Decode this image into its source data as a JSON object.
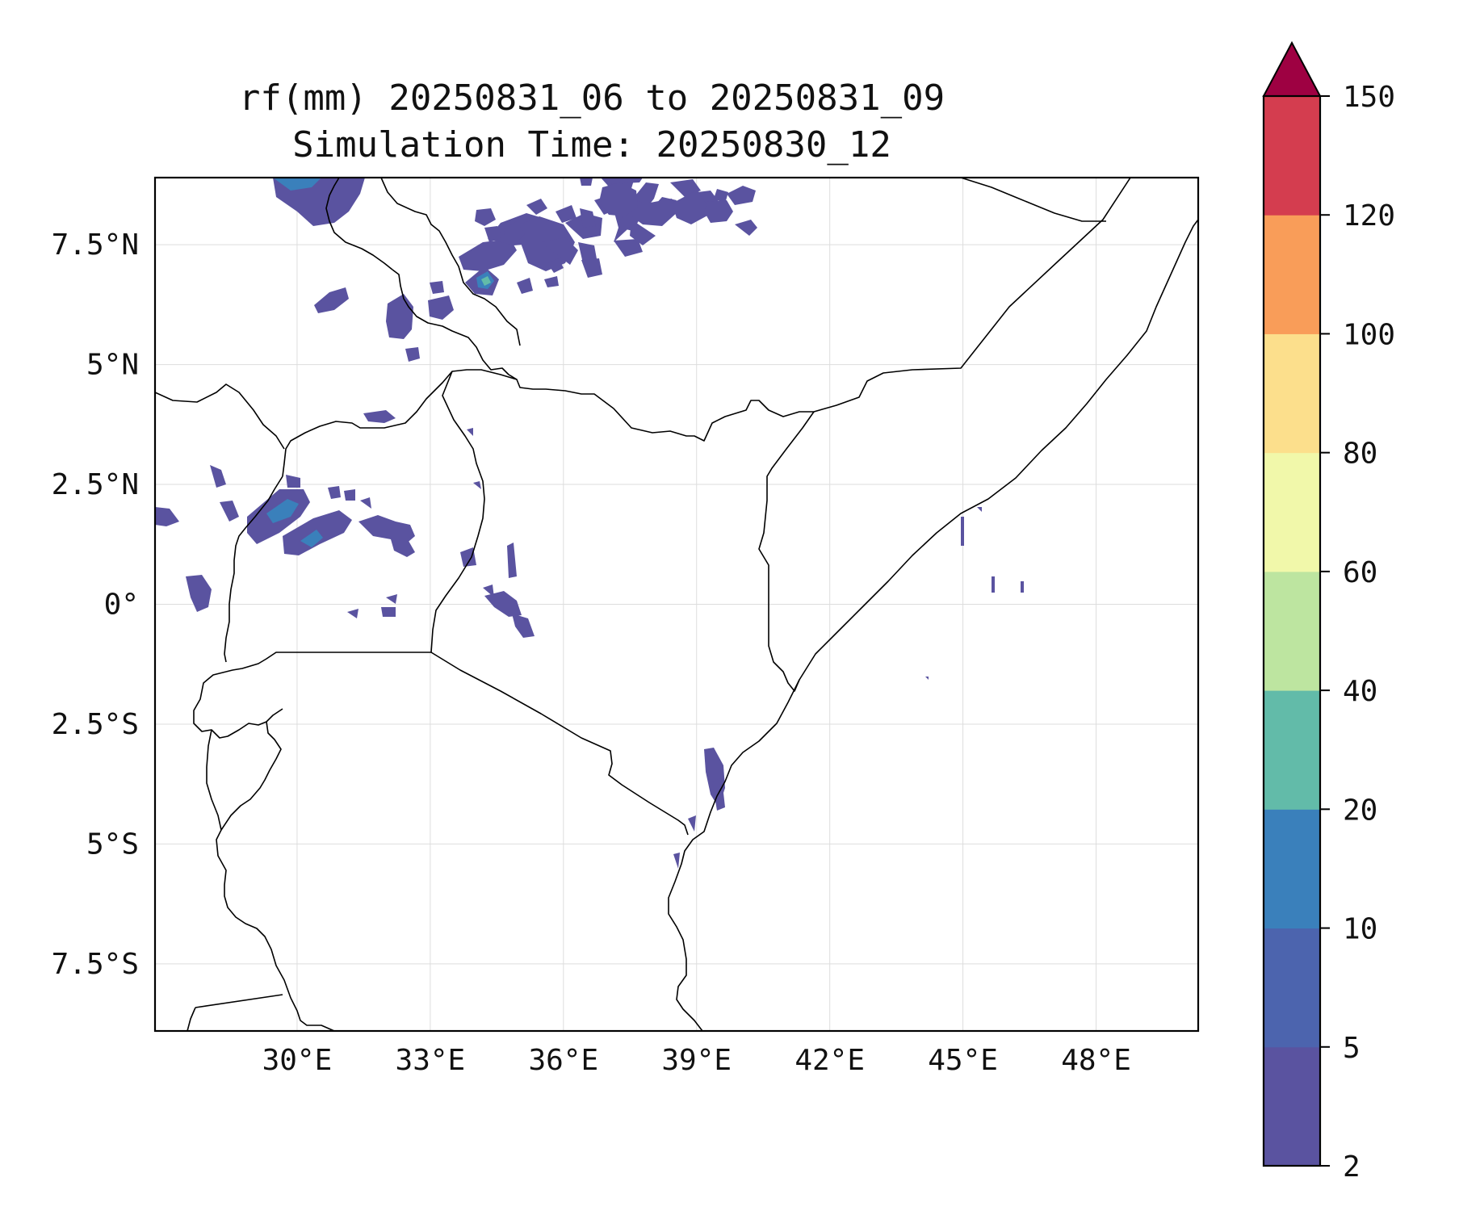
{
  "title": {
    "line1": "rf(mm) 20250831_06 to 20250831_09",
    "line2": "Simulation Time: 20250830_12"
  },
  "map": {
    "lon_range": [
      26.8,
      50.3
    ],
    "lat_range": [
      -8.9,
      8.9
    ],
    "projection": "plate-carree",
    "gridlines": true,
    "coastline_color": "#000000",
    "background_color": "#ffffff"
  },
  "axes": {
    "x_ticks": [
      {
        "value": 30,
        "label": "30°E"
      },
      {
        "value": 33,
        "label": "33°E"
      },
      {
        "value": 36,
        "label": "36°E"
      },
      {
        "value": 39,
        "label": "39°E"
      },
      {
        "value": 42,
        "label": "42°E"
      },
      {
        "value": 45,
        "label": "45°E"
      },
      {
        "value": 48,
        "label": "48°E"
      }
    ],
    "y_ticks": [
      {
        "value": 7.5,
        "label": "7.5°N"
      },
      {
        "value": 5,
        "label": "5°N"
      },
      {
        "value": 2.5,
        "label": "2.5°N"
      },
      {
        "value": 0,
        "label": "0°"
      },
      {
        "value": -2.5,
        "label": "2.5°S"
      },
      {
        "value": -5,
        "label": "5°S"
      },
      {
        "value": -7.5,
        "label": "7.5°S"
      }
    ]
  },
  "colorbar": {
    "levels": [
      "2",
      "5",
      "10",
      "20",
      "40",
      "60",
      "80",
      "100",
      "120",
      "150"
    ],
    "colors": [
      "#5a53a0",
      "#4c64ae",
      "#3a80bb",
      "#62bba9",
      "#bde5a0",
      "#f1f8aa",
      "#fcdf8c",
      "#f99d59",
      "#d43d4f"
    ],
    "extend_color": "#9e0142",
    "extend": "max"
  },
  "rain_color_main": "#5a53a0",
  "rain_color_heavy": "#3a80bb",
  "rain_color_peak": "#62bba9"
}
